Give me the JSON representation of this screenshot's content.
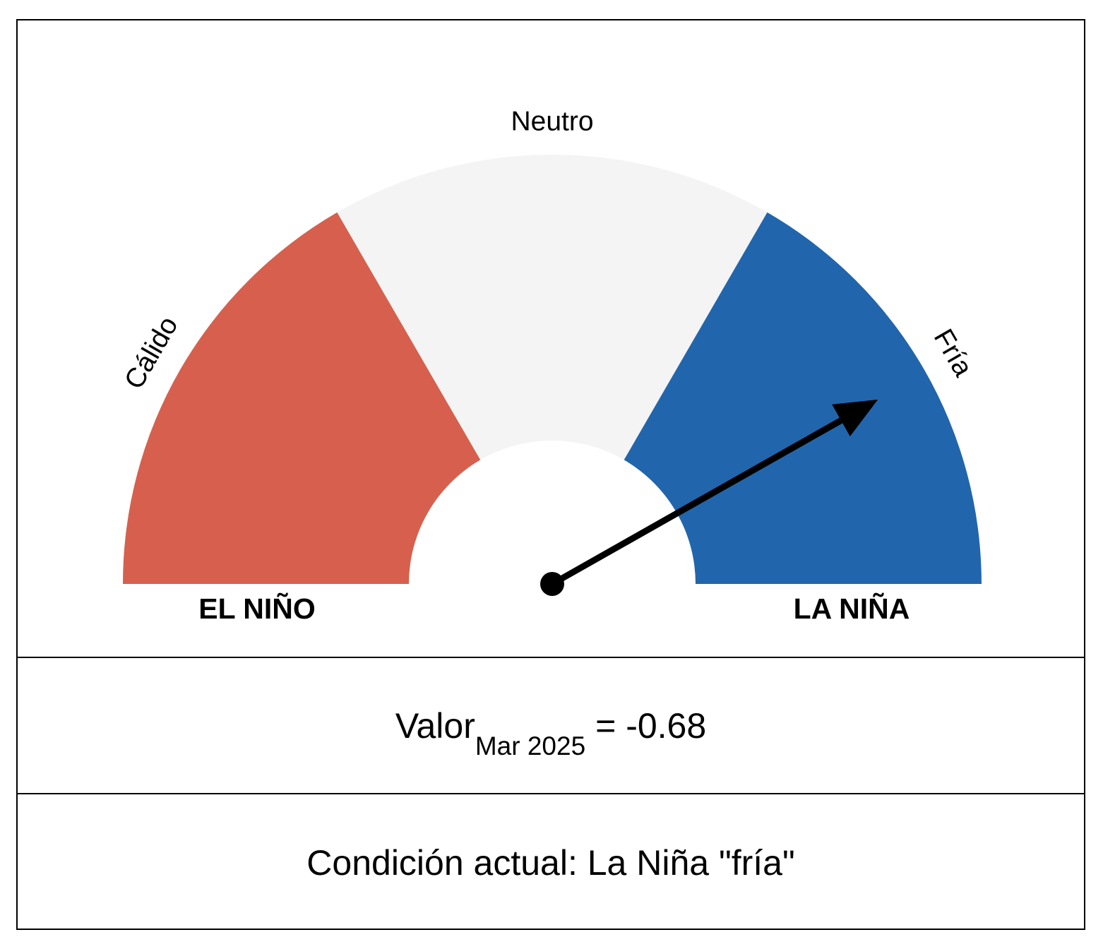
{
  "chart_data": {
    "type": "gauge",
    "title": "",
    "sectors": [
      {
        "label": "Cálido",
        "color": "#d6604d",
        "from": 0.0,
        "to": 0.333
      },
      {
        "label": "Neutro",
        "color": "#f4f4f4",
        "from": 0.333,
        "to": 0.667
      },
      {
        "label": "Fría",
        "color": "#2166ac",
        "from": 0.667,
        "to": 1.0
      }
    ],
    "end_labels": {
      "left": "EL NIÑO",
      "right": "LA NIÑA"
    },
    "needle_fraction": 0.836,
    "needle_color": "#000000",
    "value": {
      "label": "Valor",
      "period": "Mar 2025",
      "equals": "=",
      "number": "-0.68"
    },
    "condition": "Condición actual: La Niña \"fría\""
  }
}
